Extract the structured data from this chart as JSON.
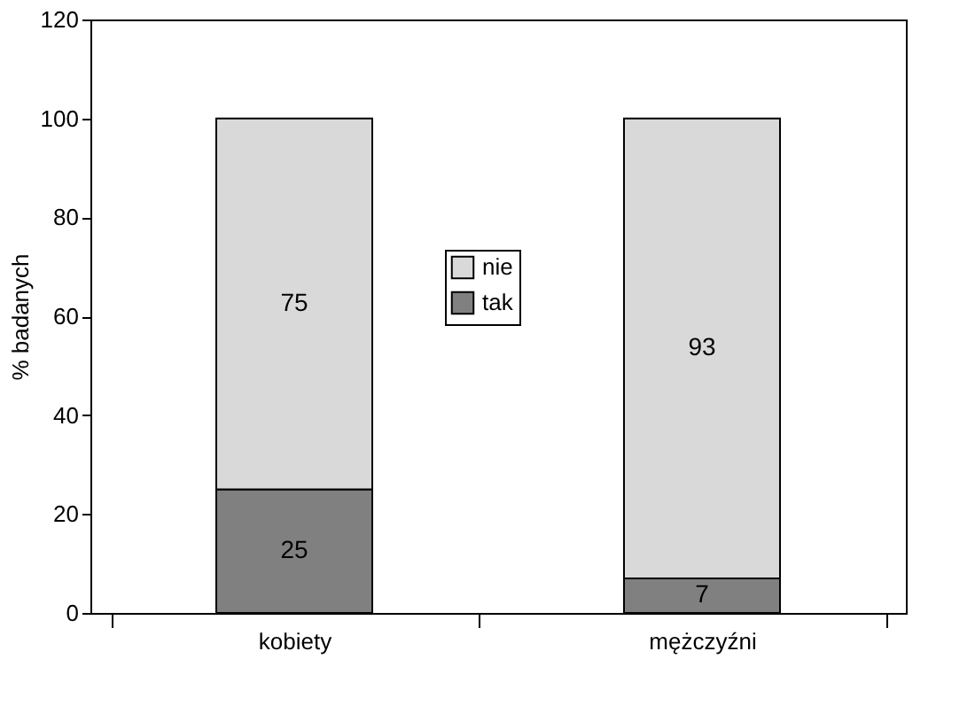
{
  "chart_data": {
    "type": "bar",
    "stacked": true,
    "ylabel": "% badanych",
    "categories": [
      "kobiety",
      "mężczyźni"
    ],
    "series": [
      {
        "name": "tak",
        "color": "#808080",
        "values": [
          25,
          7
        ]
      },
      {
        "name": "nie",
        "color": "#d9d9d9",
        "values": [
          75,
          93
        ]
      }
    ],
    "ylim": [
      0,
      120
    ],
    "yticks": [
      0,
      20,
      40,
      60,
      80,
      100,
      120
    ],
    "grid": false,
    "legend": "center",
    "data_labels": true
  }
}
